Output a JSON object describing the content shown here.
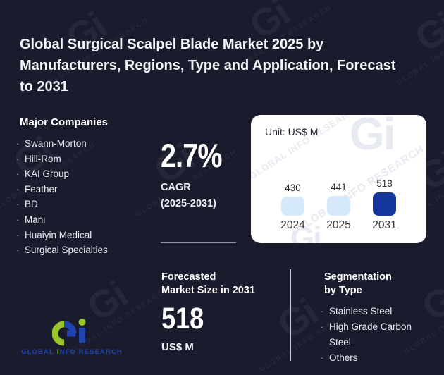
{
  "title": {
    "lines": [
      "Global Surgical Scalpel Blade Market 2025 by",
      "Manufacturers, Regions, Type and Application, Forecast",
      "to 2031"
    ]
  },
  "companies": {
    "heading": "Major Companies",
    "bullet": "·",
    "items": [
      "Swann-Morton",
      "Hill-Rom",
      "KAI Group",
      "Feather",
      "BD",
      "Mani",
      "Huaiyin Medical",
      "Surgical Specialties"
    ]
  },
  "cagr": {
    "value": "2.7%",
    "label": "CAGR",
    "period": "(2025-2031)"
  },
  "chart_data": {
    "type": "bar",
    "title": "Unit: US$ M",
    "unit": "US$ M",
    "categories": [
      "2024",
      "2025",
      "2031"
    ],
    "values": [
      430,
      441,
      518
    ],
    "bar_colors": [
      "#d6e8fb",
      "#d6e8fb",
      "#16379e"
    ],
    "highlight_index": 2,
    "legend": "none",
    "grid": false
  },
  "forecast": {
    "heading_lines": [
      "Forecasted",
      "Market Size in 2031"
    ],
    "value": "518",
    "unit": "US$ M"
  },
  "segmentation": {
    "heading_lines": [
      "Segmentation",
      "by Type"
    ],
    "bullet": "·",
    "items": [
      "Stainless Steel",
      "High Grade Carbon Steel",
      "Others"
    ]
  },
  "logo": {
    "text_part1": "GLOBAL",
    "text_i": "i",
    "text_part2": "NFO RESEARCH"
  },
  "watermark": {
    "glyph": "Gi",
    "text": "GLOBAL INFO RESEARCH"
  },
  "colors": {
    "background": "#1a1b2d",
    "panel": "#ffffff",
    "bar_light": "#d6e8fb",
    "bar_dark": "#16379e",
    "logo_green": "#9ac42c",
    "logo_blue": "#2145b0",
    "text_primary": "#ffffff"
  }
}
